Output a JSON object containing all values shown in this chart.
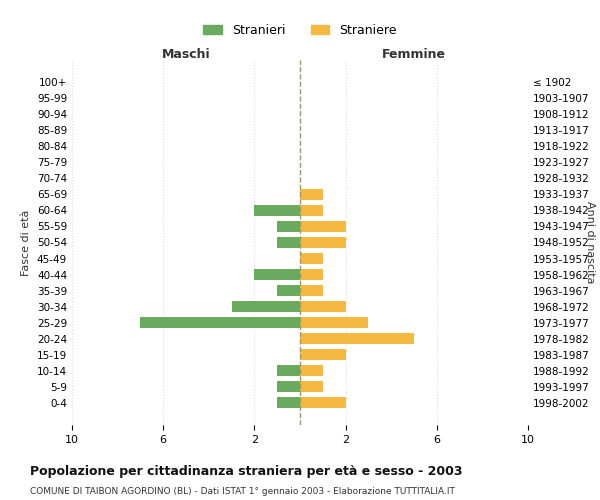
{
  "age_groups": [
    "0-4",
    "5-9",
    "10-14",
    "15-19",
    "20-24",
    "25-29",
    "30-34",
    "35-39",
    "40-44",
    "45-49",
    "50-54",
    "55-59",
    "60-64",
    "65-69",
    "70-74",
    "75-79",
    "80-84",
    "85-89",
    "90-94",
    "95-99",
    "100+"
  ],
  "birth_years": [
    "1998-2002",
    "1993-1997",
    "1988-1992",
    "1983-1987",
    "1978-1982",
    "1973-1977",
    "1968-1972",
    "1963-1967",
    "1958-1962",
    "1953-1957",
    "1948-1952",
    "1943-1947",
    "1938-1942",
    "1933-1937",
    "1928-1932",
    "1923-1927",
    "1918-1922",
    "1913-1917",
    "1908-1912",
    "1903-1907",
    "≤ 1902"
  ],
  "maschi": [
    1,
    1,
    1,
    0,
    0,
    7,
    3,
    1,
    2,
    0,
    1,
    1,
    2,
    0,
    0,
    0,
    0,
    0,
    0,
    0,
    0
  ],
  "femmine": [
    2,
    1,
    1,
    2,
    5,
    3,
    2,
    1,
    1,
    1,
    2,
    2,
    1,
    1,
    0,
    0,
    0,
    0,
    0,
    0,
    0
  ],
  "color_maschi": "#6aaa5e",
  "color_femmine": "#f5b942",
  "title": "Popolazione per cittadinanza straniera per età e sesso - 2003",
  "subtitle": "COMUNE DI TAIBON AGORDINO (BL) - Dati ISTAT 1° gennaio 2003 - Elaborazione TUTTITALIA.IT",
  "xlabel_left": "Maschi",
  "xlabel_right": "Femmine",
  "ylabel_left": "Fasce di età",
  "ylabel_right": "Anni di nascita",
  "legend_maschi": "Stranieri",
  "legend_femmine": "Straniere",
  "xlim": 10,
  "background_color": "#ffffff",
  "grid_color": "#dddddd"
}
